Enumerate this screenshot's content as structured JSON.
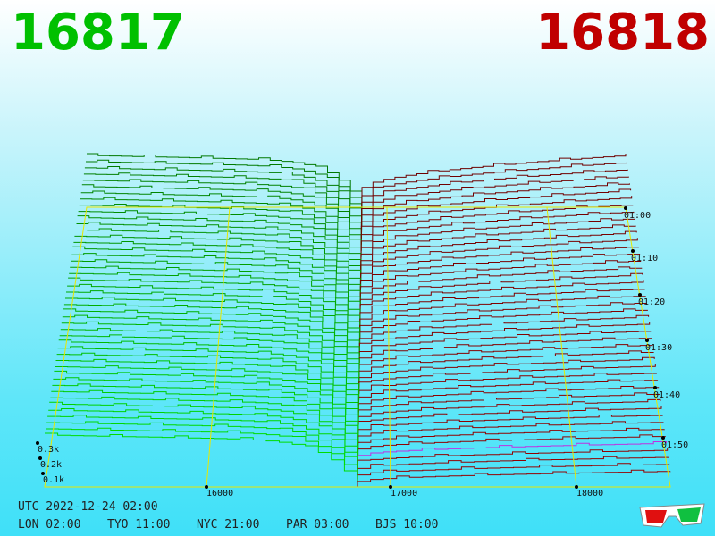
{
  "header": {
    "bid": "16817",
    "ask": "16818"
  },
  "price_axis": {
    "labels": [
      "16000",
      "17000",
      "18000"
    ]
  },
  "time_axis": {
    "labels": [
      "01:00",
      "01:10",
      "01:20",
      "01:30",
      "01:40",
      "01:50"
    ]
  },
  "depth_axis": {
    "labels": [
      "0.3k",
      "0.2k",
      "0.1k"
    ]
  },
  "footer": {
    "utc": "UTC 2022-12-24 02:00",
    "clocks": [
      "LON 02:00",
      "TYO 11:00",
      "NYC 21:00",
      "PAR 03:00",
      "BJS 10:00"
    ]
  }
}
